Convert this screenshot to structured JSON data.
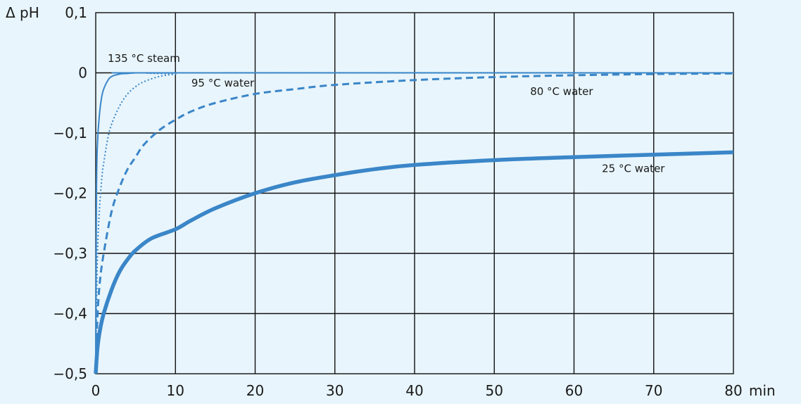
{
  "chart_data": {
    "type": "line",
    "ylabel": "Δ pH",
    "xunit": "min",
    "xlim": [
      0,
      80
    ],
    "ylim": [
      -0.5,
      0.1
    ],
    "xticks": [
      0,
      10,
      20,
      30,
      40,
      50,
      60,
      70,
      80
    ],
    "xtick_labels": [
      "0",
      "10",
      "20",
      "30",
      "40",
      "50",
      "60",
      "70",
      "80"
    ],
    "yticks": [
      0.1,
      0,
      -0.1,
      -0.2,
      -0.3,
      -0.4,
      -0.5
    ],
    "ytick_labels": [
      "0,1",
      "0",
      "−0,1",
      "−0,2",
      "−0,3",
      "−0,4",
      "−0,5"
    ],
    "grid": true,
    "line_color": "#3a86c8",
    "series": [
      {
        "name": "135 °C steam",
        "style": "thin-solid",
        "x": [
          0,
          0.1,
          0.25,
          0.5,
          0.75,
          1,
          1.5,
          2,
          3,
          4,
          5,
          6,
          8,
          80
        ],
        "y": [
          -0.5,
          -0.19,
          -0.11,
          -0.065,
          -0.04,
          -0.027,
          -0.013,
          -0.006,
          -0.002,
          -0.001,
          0,
          0,
          0,
          0
        ]
      },
      {
        "name": "95 °C water",
        "style": "dotted",
        "x": [
          0,
          0.15,
          0.3,
          0.5,
          0.8,
          1,
          1.5,
          2,
          3,
          4,
          5,
          6,
          8,
          10,
          12,
          80
        ],
        "y": [
          -0.5,
          -0.34,
          -0.27,
          -0.22,
          -0.17,
          -0.15,
          -0.11,
          -0.085,
          -0.055,
          -0.035,
          -0.023,
          -0.015,
          -0.006,
          -0.002,
          0,
          0
        ]
      },
      {
        "name": "80 °C water",
        "style": "dashed",
        "x": [
          0,
          0.2,
          0.5,
          1,
          2,
          3,
          4,
          5,
          6,
          8,
          10,
          12,
          15,
          20,
          25,
          30,
          40,
          50,
          60,
          70,
          80
        ],
        "y": [
          -0.5,
          -0.41,
          -0.35,
          -0.3,
          -0.23,
          -0.19,
          -0.16,
          -0.14,
          -0.12,
          -0.095,
          -0.078,
          -0.064,
          -0.05,
          -0.035,
          -0.027,
          -0.02,
          -0.012,
          -0.007,
          -0.004,
          -0.002,
          -0.001
        ]
      },
      {
        "name": "25 °C water",
        "style": "thick-solid",
        "x": [
          0,
          0.2,
          0.5,
          1,
          2,
          3,
          4,
          5,
          7,
          10,
          12,
          15,
          20,
          25,
          30,
          35,
          40,
          50,
          60,
          70,
          80
        ],
        "y": [
          -0.5,
          -0.46,
          -0.43,
          -0.4,
          -0.36,
          -0.33,
          -0.31,
          -0.295,
          -0.275,
          -0.26,
          -0.245,
          -0.225,
          -0.2,
          -0.182,
          -0.17,
          -0.16,
          -0.153,
          -0.145,
          -0.14,
          -0.136,
          -0.132
        ]
      }
    ],
    "annotations": [
      {
        "text": "135 °C steam",
        "x": 1.5,
        "y": 0.018
      },
      {
        "text": "95 °C water",
        "x": 12,
        "y": -0.023
      },
      {
        "text": "80 °C water",
        "x": 54.5,
        "y": -0.037
      },
      {
        "text": "25 °C water",
        "x": 63.5,
        "y": -0.165
      }
    ]
  }
}
